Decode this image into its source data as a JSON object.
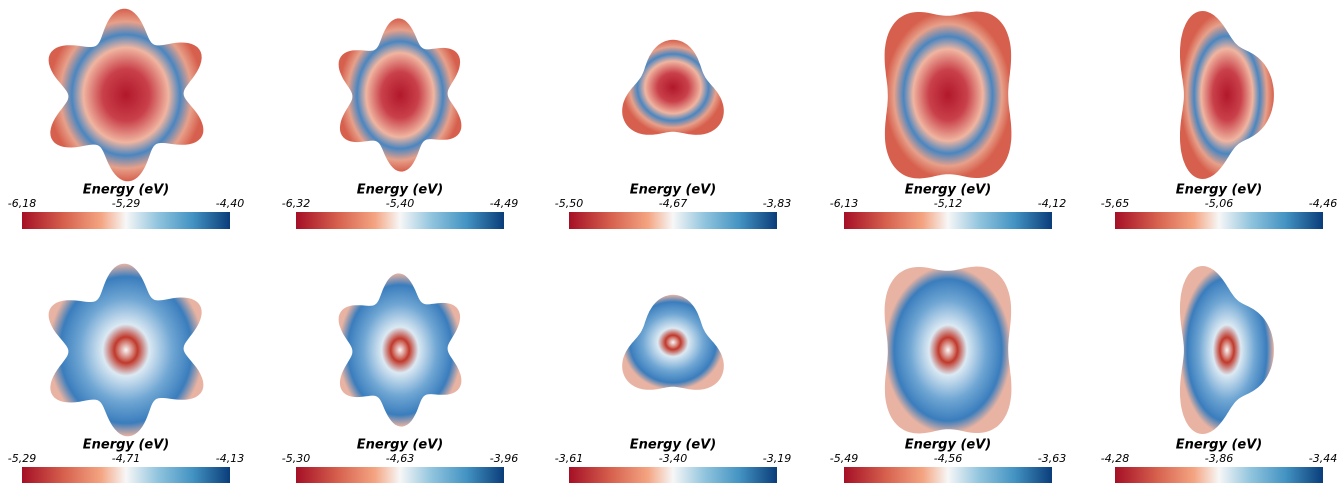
{
  "panels": [
    {
      "title": "Energy (eV)",
      "ticks": [
        "-6,18",
        "-5,29",
        "-4,40"
      ]
    },
    {
      "title": "Energy (eV)",
      "ticks": [
        "-6,32",
        "-5,40",
        "-4,49"
      ]
    },
    {
      "title": "Energy (eV)",
      "ticks": [
        "-5,50",
        "-4,67",
        "-3,83"
      ]
    },
    {
      "title": "Energy (eV)",
      "ticks": [
        "-6,13",
        "-5,12",
        "-4,12"
      ]
    },
    {
      "title": "Energy (eV)",
      "ticks": [
        "-5,65",
        "-5,06",
        "-4,46"
      ]
    },
    {
      "title": "Energy (eV)",
      "ticks": [
        "-5,29",
        "-4,71",
        "-4,13"
      ]
    },
    {
      "title": "Energy (eV)",
      "ticks": [
        "-5,30",
        "-4,63",
        "-3,96"
      ]
    },
    {
      "title": "Energy (eV)",
      "ticks": [
        "-3,61",
        "-3,40",
        "-3,19"
      ]
    },
    {
      "title": "Energy (eV)",
      "ticks": [
        "-5,49",
        "-4,56",
        "-3,63"
      ]
    },
    {
      "title": "Energy (eV)",
      "ticks": [
        "-4,28",
        "-3,86",
        "-3,44"
      ]
    }
  ]
}
